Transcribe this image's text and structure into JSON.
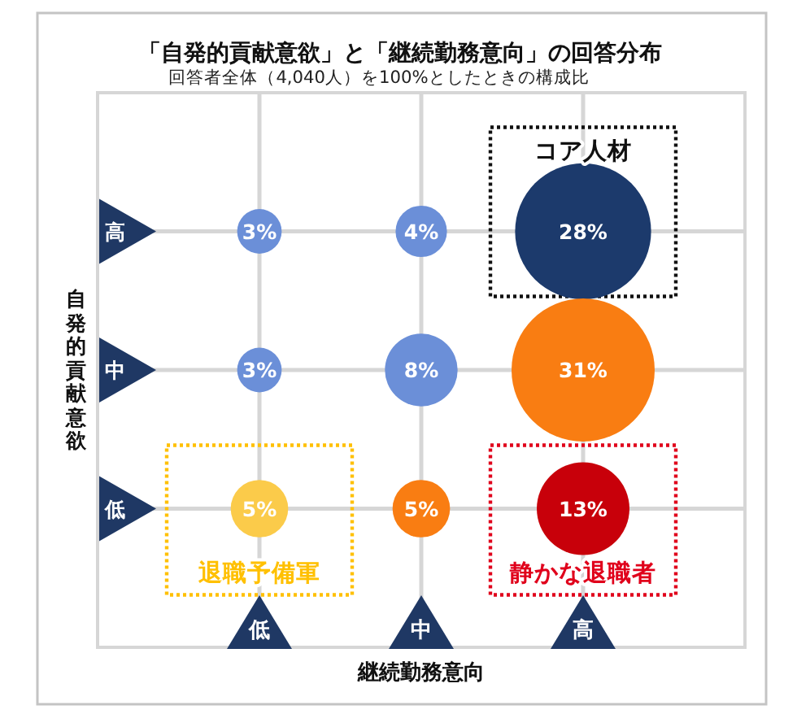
{
  "chart_data": {
    "type": "heatmap",
    "title": "「自発的貢献意欲」と「継続勤務意向」の回答分布",
    "subtitle": "回答者全体（4,040人）を100%としたときの構成比",
    "xlabel": "継続勤務意向",
    "ylabel": "自発的貢献意欲",
    "categories": [
      "低",
      "中",
      "高"
    ],
    "y_categories": [
      "高",
      "中",
      "低"
    ],
    "cells": [
      [
        3,
        4,
        28
      ],
      [
        3,
        8,
        31
      ],
      [
        5,
        5,
        13
      ]
    ],
    "cell_labels": [
      [
        "3%",
        "4%",
        "28%"
      ],
      [
        "3%",
        "8%",
        "31%"
      ],
      [
        "5%",
        "5%",
        "13%"
      ]
    ],
    "colors": [
      "#6b8fd8",
      "#6b8fd8",
      "#1c3a6c",
      "#6b8fd8",
      "#6b8fd8",
      "#f97d12",
      "#fbcb4a",
      "#f97d12",
      "#c8000a"
    ],
    "grid": true,
    "annotations": [
      "コア人材",
      "退職予備軍",
      "静かな退職者"
    ]
  }
}
